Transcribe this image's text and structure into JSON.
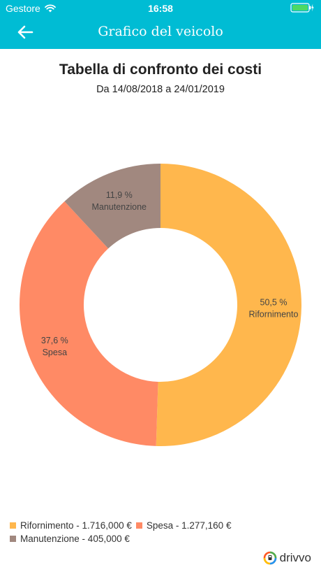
{
  "status_bar": {
    "carrier": "Gestore",
    "time": "16:58"
  },
  "nav": {
    "title": "Grafico del veicolo",
    "back_icon": "arrow-left-icon"
  },
  "chart_data": {
    "type": "pie",
    "title": "Tabella di confronto dei costi",
    "subtitle": "Da 14/08/2018 a 24/01/2019",
    "legend_position": "bottom-left",
    "slices": [
      {
        "label": "Rifornimento",
        "value": 1716.0,
        "percent": 50.5,
        "percent_label": "50,5 %",
        "legend_text": "Rifornimento - 1.716,000 €",
        "color": "#ffb74d"
      },
      {
        "label": "Spesa",
        "value": 1277.16,
        "percent": 37.6,
        "percent_label": "37,6 %",
        "legend_text": "Spesa - 1.277,160 €",
        "color": "#ff8a65"
      },
      {
        "label": "Manutenzione",
        "value": 405.0,
        "percent": 11.9,
        "percent_label": "11,9 %",
        "legend_text": "Manutenzione - 405,000 €",
        "color": "#a1887f"
      }
    ]
  },
  "brand": {
    "name": "drivvo"
  },
  "colors": {
    "header": "#00bcd4"
  }
}
